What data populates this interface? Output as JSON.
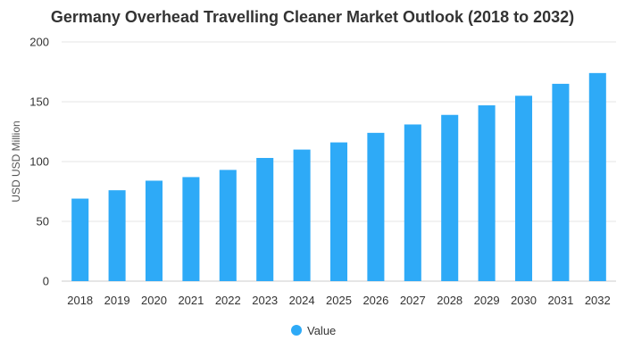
{
  "chart_data": {
    "type": "bar",
    "title": "Germany Overhead Travelling Cleaner Market Outlook (2018 to 2032)",
    "xlabel": "",
    "ylabel": "USD USD Million",
    "categories": [
      "2018",
      "2019",
      "2020",
      "2021",
      "2022",
      "2023",
      "2024",
      "2025",
      "2026",
      "2027",
      "2028",
      "2029",
      "2030",
      "2031",
      "2032"
    ],
    "series": [
      {
        "name": "Value",
        "color": "#2eaaf7",
        "values": [
          69,
          76,
          84,
          87,
          93,
          103,
          110,
          116,
          124,
          131,
          139,
          147,
          155,
          165,
          174
        ]
      }
    ],
    "ylim": [
      0,
      200
    ],
    "yticks": [
      0,
      50,
      100,
      150,
      200
    ],
    "grid": true,
    "legend_position": "bottom-center"
  }
}
